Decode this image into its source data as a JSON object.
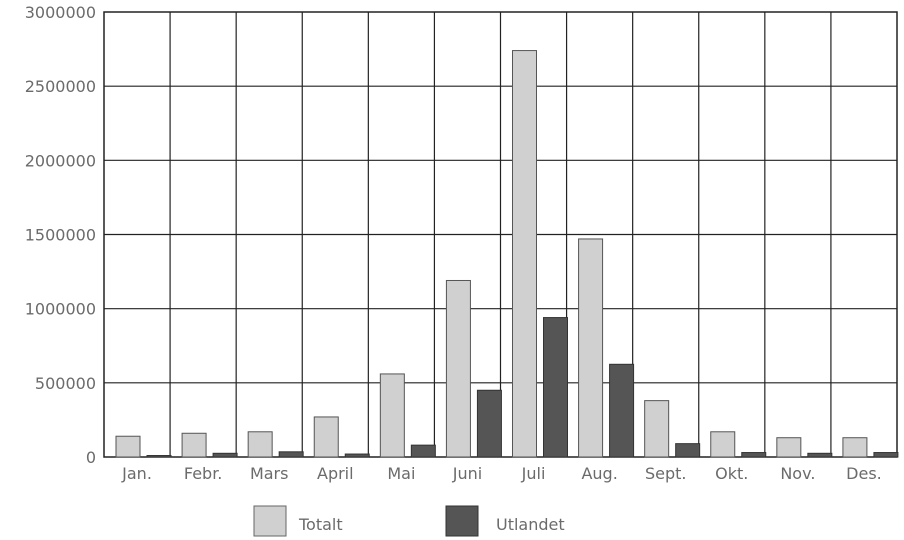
{
  "chart_data": {
    "type": "bar",
    "categories": [
      "Jan.",
      "Febr.",
      "Mars",
      "April",
      "Mai",
      "Juni",
      "Juli",
      "Aug.",
      "Sept.",
      "Okt.",
      "Nov.",
      "Des."
    ],
    "series": [
      {
        "name": "Totalt",
        "color": "#d0d0d0",
        "values": [
          140000,
          160000,
          170000,
          270000,
          560000,
          1190000,
          2740000,
          1470000,
          380000,
          170000,
          130000,
          130000
        ]
      },
      {
        "name": "Utlandet",
        "color": "#555555",
        "values": [
          10000,
          25000,
          35000,
          20000,
          80000,
          450000,
          940000,
          625000,
          90000,
          30000,
          25000,
          30000
        ]
      }
    ],
    "yticks": [
      "0",
      "500000",
      "1000000",
      "1500000",
      "2000000",
      "2500000",
      "3000000"
    ],
    "ylim": [
      0,
      3000000
    ],
    "grid": true,
    "legend": "bottom-center",
    "title": "",
    "xlabel": "",
    "ylabel": ""
  }
}
